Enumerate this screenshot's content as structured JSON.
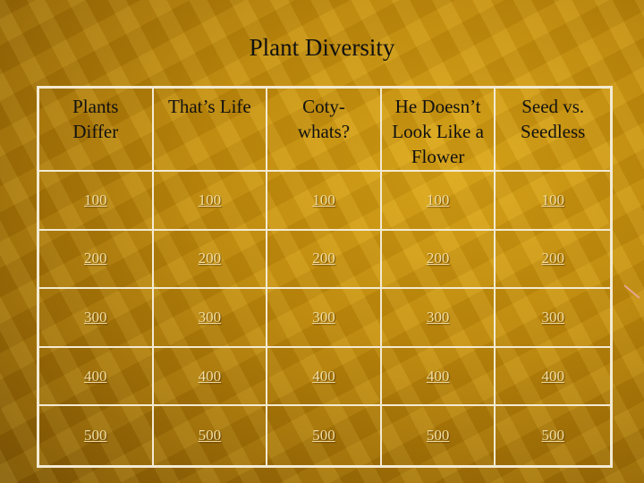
{
  "title": "Plant Diversity",
  "categories": [
    "Plants Differ",
    "That’s Life",
    "Coty-\nwhats?",
    "He Doesn’t Look Like a Flower",
    "Seed vs. Seedless"
  ],
  "values": [
    "100",
    "200",
    "300",
    "400",
    "500"
  ]
}
